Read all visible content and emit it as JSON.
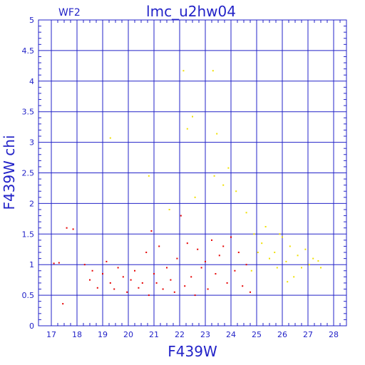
{
  "chart_data": {
    "type": "scatter",
    "title": "lmc_u2hw04",
    "panel_label": "WF2",
    "xlabel": "F439W",
    "ylabel": "F439W chi",
    "xlim": [
      16.5,
      28.5
    ],
    "ylim": [
      0,
      5
    ],
    "grid": true,
    "x_ticks": [
      17,
      18,
      19,
      20,
      21,
      22,
      23,
      24,
      25,
      26,
      27,
      28
    ],
    "y_ticks": [
      0,
      0.5,
      1,
      1.5,
      2,
      2.5,
      3,
      3.5,
      4,
      4.5,
      5
    ],
    "y_tick_labels": [
      "0",
      "0.5",
      "1",
      "1.5",
      "2",
      "2.5",
      "3",
      "3.5",
      "4",
      "4.5",
      "5"
    ],
    "colors": {
      "axis": "#2323c8",
      "grid": "#2323c8",
      "red": "#e60000",
      "yellow": "#f0e000"
    },
    "series": [
      {
        "color": "red",
        "points": [
          [
            17.1,
            1.02
          ],
          [
            17.3,
            1.03
          ],
          [
            17.45,
            0.36
          ],
          [
            17.6,
            1.6
          ],
          [
            17.85,
            1.58
          ],
          [
            18.3,
            1.0
          ],
          [
            18.5,
            0.75
          ],
          [
            18.6,
            0.9
          ],
          [
            18.8,
            0.62
          ],
          [
            19.0,
            0.85
          ],
          [
            19.15,
            1.05
          ],
          [
            19.3,
            0.7
          ],
          [
            19.45,
            0.6
          ],
          [
            19.6,
            0.95
          ],
          [
            19.8,
            0.8
          ],
          [
            19.95,
            0.55
          ],
          [
            20.1,
            0.75
          ],
          [
            20.25,
            0.9
          ],
          [
            20.4,
            0.62
          ],
          [
            20.55,
            0.7
          ],
          [
            20.7,
            1.2
          ],
          [
            20.8,
            0.5
          ],
          [
            20.9,
            1.55
          ],
          [
            21.0,
            0.85
          ],
          [
            21.1,
            0.7
          ],
          [
            21.2,
            1.3
          ],
          [
            21.35,
            0.6
          ],
          [
            21.5,
            0.95
          ],
          [
            21.65,
            0.75
          ],
          [
            21.8,
            0.55
          ],
          [
            21.9,
            1.1
          ],
          [
            22.05,
            1.8
          ],
          [
            22.2,
            0.65
          ],
          [
            22.3,
            1.35
          ],
          [
            22.45,
            0.8
          ],
          [
            22.6,
            0.5
          ],
          [
            22.7,
            1.25
          ],
          [
            22.85,
            0.95
          ],
          [
            23.0,
            1.05
          ],
          [
            23.1,
            0.6
          ],
          [
            23.25,
            1.4
          ],
          [
            23.4,
            0.85
          ],
          [
            23.55,
            1.15
          ],
          [
            23.7,
            1.3
          ],
          [
            23.85,
            0.7
          ],
          [
            24.0,
            1.45
          ],
          [
            24.15,
            0.9
          ],
          [
            24.3,
            1.2
          ],
          [
            24.45,
            0.65
          ],
          [
            24.6,
            1.0
          ],
          [
            24.75,
            0.55
          ]
        ]
      },
      {
        "color": "yellow",
        "points": [
          [
            19.3,
            3.07
          ],
          [
            20.8,
            2.45
          ],
          [
            21.6,
            1.9
          ],
          [
            22.15,
            4.17
          ],
          [
            22.3,
            3.22
          ],
          [
            22.5,
            3.42
          ],
          [
            22.6,
            2.1
          ],
          [
            23.3,
            4.17
          ],
          [
            23.35,
            2.45
          ],
          [
            23.45,
            3.14
          ],
          [
            23.7,
            2.3
          ],
          [
            23.9,
            2.58
          ],
          [
            24.2,
            2.2
          ],
          [
            24.6,
            1.85
          ],
          [
            24.9,
            1.5
          ],
          [
            25.2,
            1.35
          ],
          [
            25.35,
            1.62
          ],
          [
            25.5,
            1.1
          ],
          [
            25.7,
            1.2
          ],
          [
            25.8,
            0.95
          ],
          [
            26.0,
            1.45
          ],
          [
            26.15,
            1.05
          ],
          [
            26.3,
            1.3
          ],
          [
            26.45,
            0.8
          ],
          [
            26.6,
            1.15
          ],
          [
            26.75,
            0.95
          ],
          [
            26.9,
            1.25
          ],
          [
            27.05,
            1.0
          ],
          [
            27.2,
            1.1
          ],
          [
            27.4,
            1.06
          ],
          [
            27.5,
            0.95
          ],
          [
            24.8,
            0.9
          ],
          [
            25.05,
            1.2
          ],
          [
            26.2,
            0.72
          ],
          [
            25.9,
            1.5
          ]
        ]
      }
    ]
  }
}
